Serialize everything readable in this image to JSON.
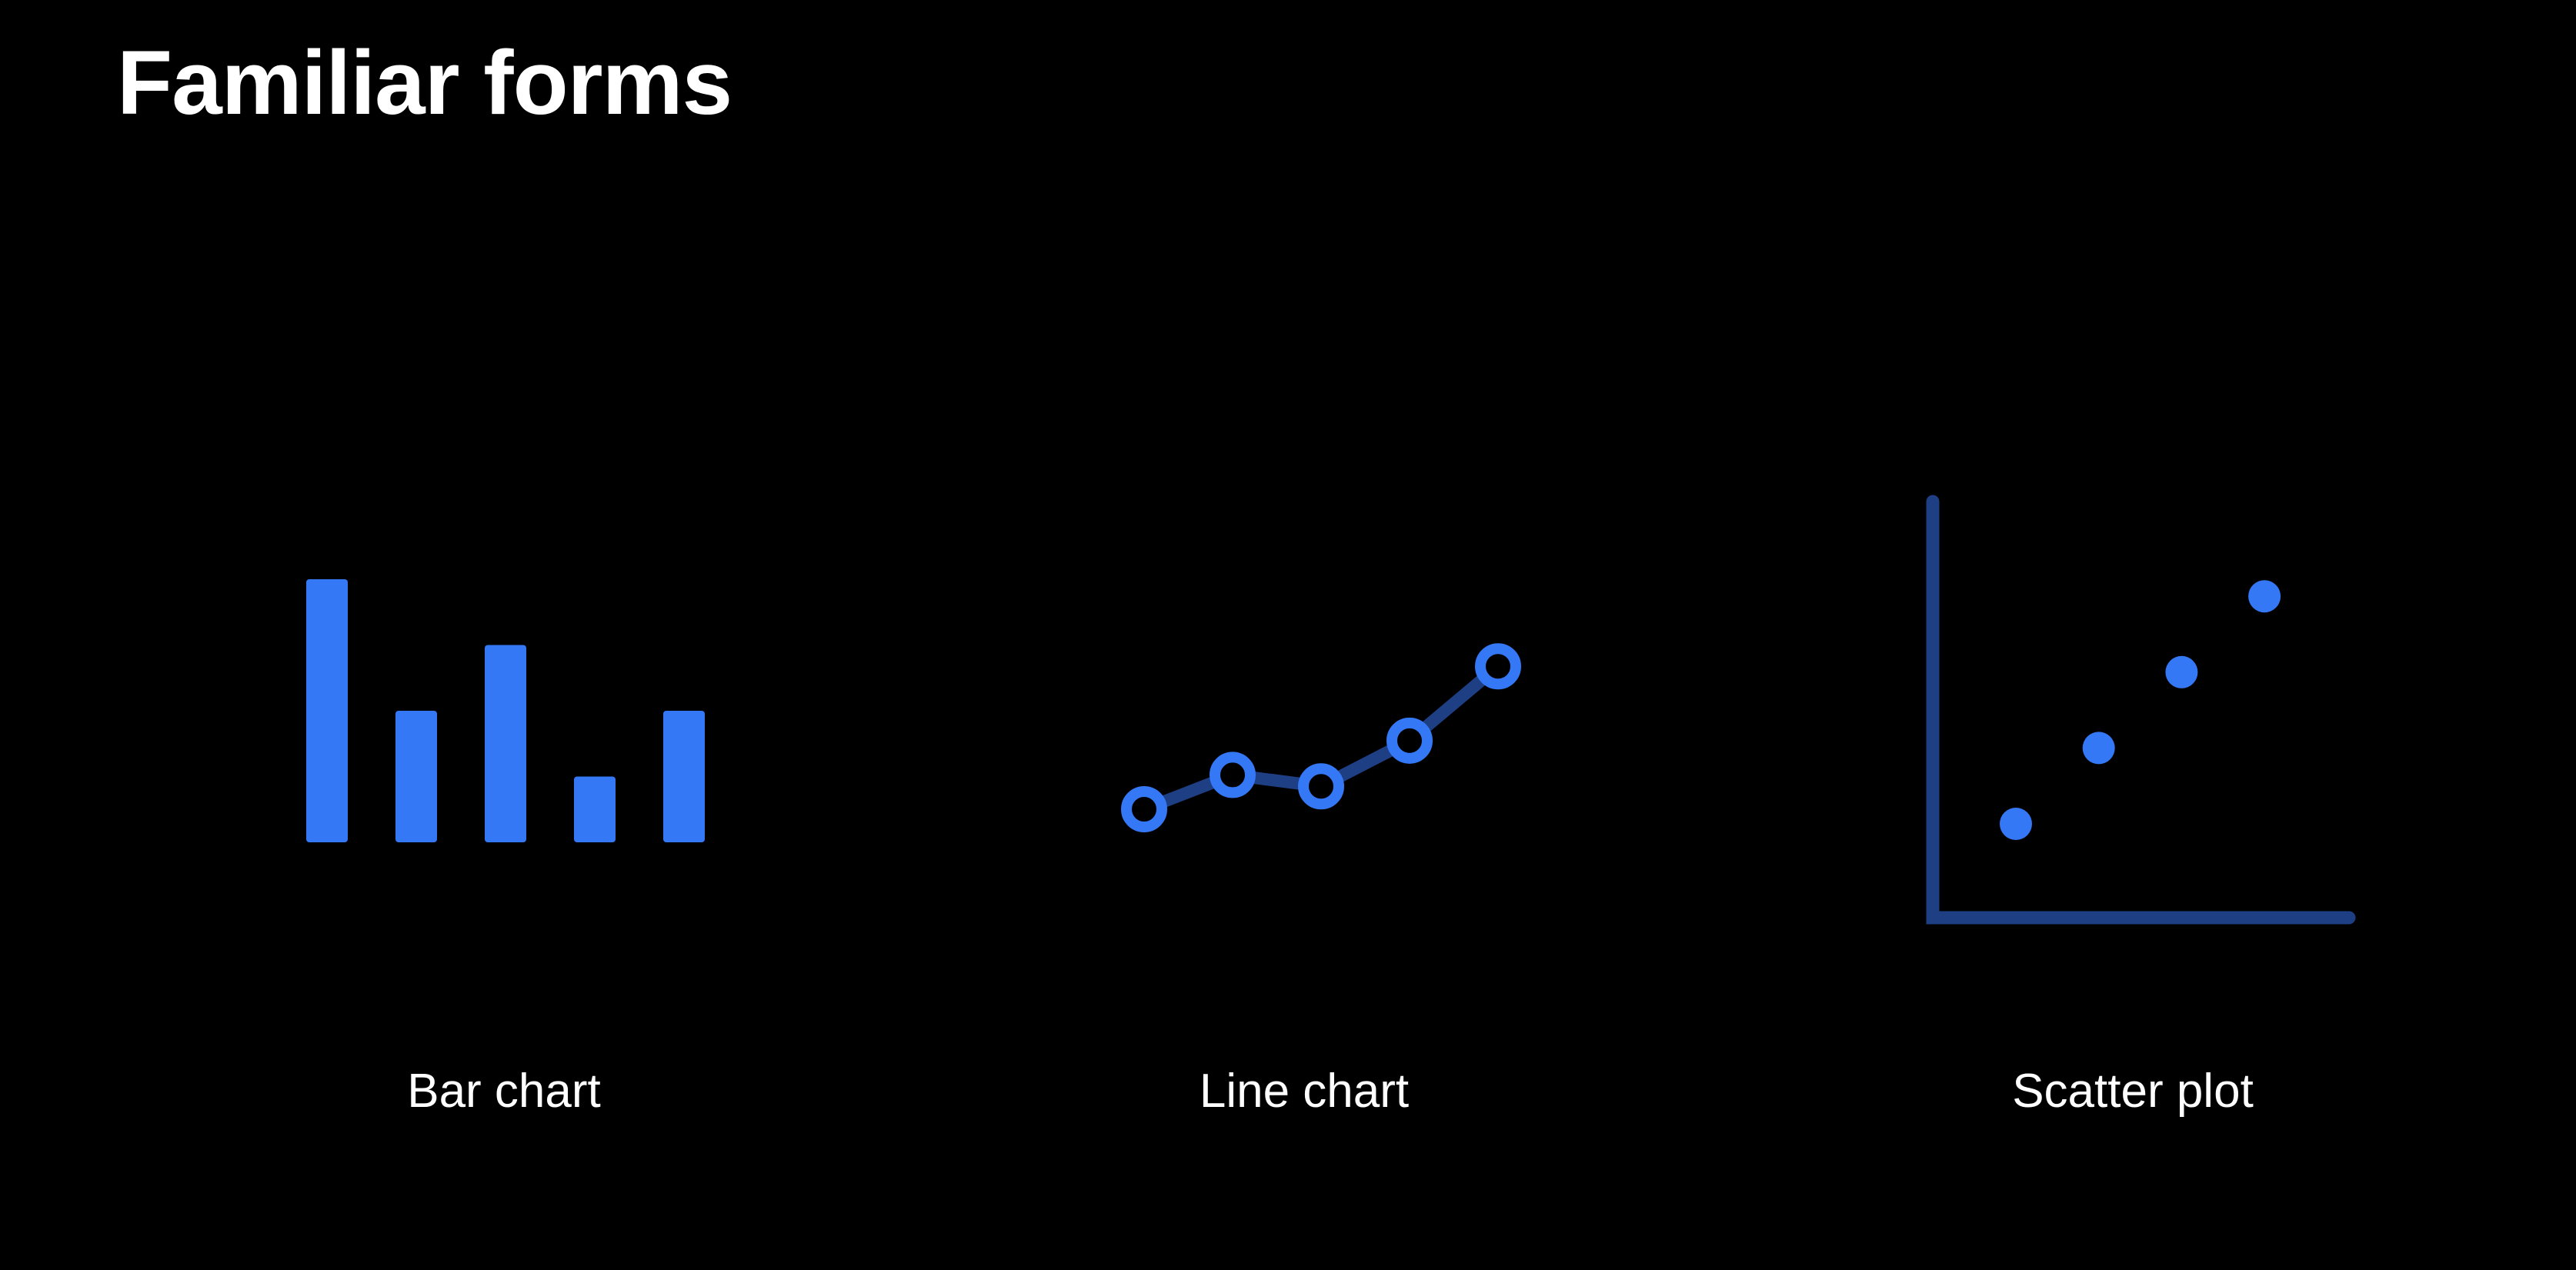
{
  "page": {
    "title": "Familiar forms"
  },
  "colors": {
    "background": "#000000",
    "text": "#ffffff",
    "accent": "#3478f6",
    "accent_dim": "#1f3f84"
  },
  "chart_data": [
    {
      "type": "bar",
      "label": "Bar chart",
      "values": [
        4,
        2,
        3,
        1,
        2
      ],
      "ylim": [
        0,
        4
      ]
    },
    {
      "type": "line",
      "label": "Line chart",
      "x": [
        1,
        2,
        3,
        4,
        5
      ],
      "values": [
        1,
        1.6,
        1.4,
        2.2,
        3.5
      ],
      "ylim": [
        0,
        3.5
      ]
    },
    {
      "type": "scatter",
      "label": "Scatter plot",
      "points": [
        [
          1,
          1
        ],
        [
          2,
          2
        ],
        [
          3,
          3
        ],
        [
          4,
          4
        ]
      ]
    }
  ]
}
